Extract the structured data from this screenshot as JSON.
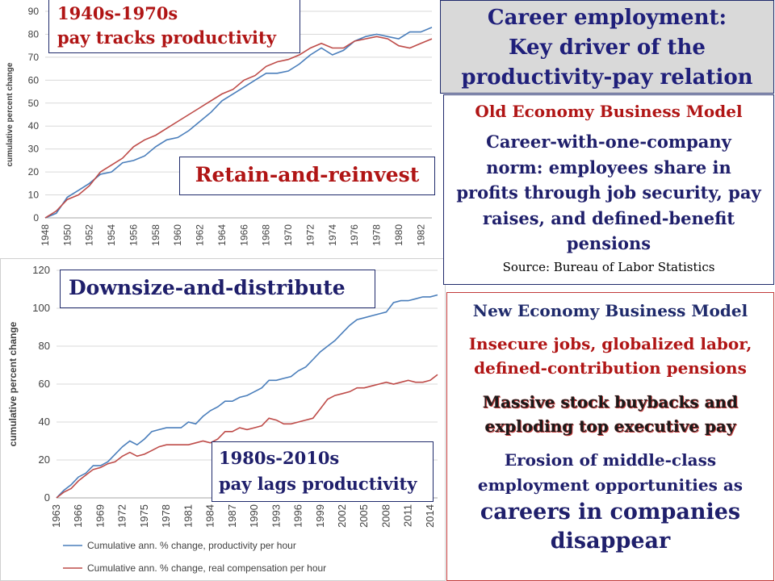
{
  "title": {
    "line1": "Career employment:",
    "line2": "Key driver of the",
    "line3": "productivity-pay relation"
  },
  "old_model": {
    "heading": "Old Economy Business Model",
    "line1": "Career-with-one-company",
    "line2": "norm: employees share in",
    "line3": "profits through job security, pay",
    "line4": "raises, and defined-benefit",
    "line5": "pensions",
    "source": "Source: Bureau of Labor Statistics"
  },
  "new_model": {
    "heading": "New Economy Business Model",
    "insecure1": "Insecure jobs, globalized labor,",
    "insecure2": "defined-contribution pensions",
    "buybacks1": "Massive stock buybacks and",
    "buybacks2": "exploding top executive pay",
    "erosion1": "Erosion of middle-class",
    "erosion2": "employment opportunities as",
    "careers1": "careers in companies",
    "careers2": "disappear"
  },
  "labels": {
    "era1_line1": "1940s-1970s",
    "era1_line2": "pay tracks productivity",
    "retain": "Retain-and-reinvest",
    "downsize": "Downsize-and-distribute",
    "era2_line1": "1980s-2010s",
    "era2_line2": "pay lags productivity"
  },
  "colors": {
    "productivity": "#4a7ebb",
    "compensation": "#be4b48",
    "title_bg": "#d9d9d9",
    "accent_red": "#b01515",
    "navy": "#1f1f6b"
  },
  "chart_data": [
    {
      "type": "line",
      "ylabel": "cumulative percent change",
      "ylim": [
        0,
        90
      ],
      "yticks": [
        0,
        10,
        20,
        30,
        40,
        50,
        60,
        70,
        80,
        90
      ],
      "xlim": [
        1948,
        1983
      ],
      "xticks": [
        "1948",
        "1950",
        "1952",
        "1954",
        "1956",
        "1958",
        "1960",
        "1962",
        "1964",
        "1966",
        "1968",
        "1970",
        "1972",
        "1974",
        "1976",
        "1978",
        "1980",
        "1982"
      ],
      "grid": true,
      "x": [
        1948,
        1949,
        1950,
        1951,
        1952,
        1953,
        1954,
        1955,
        1956,
        1957,
        1958,
        1959,
        1960,
        1961,
        1962,
        1963,
        1964,
        1965,
        1966,
        1967,
        1968,
        1969,
        1970,
        1971,
        1972,
        1973,
        1974,
        1975,
        1976,
        1977,
        1978,
        1979,
        1980,
        1981,
        1982,
        1983
      ],
      "series": [
        {
          "color_key": "productivity",
          "values": [
            0,
            2,
            9,
            12,
            15,
            19,
            20,
            24,
            25,
            27,
            31,
            34,
            35,
            38,
            42,
            46,
            51,
            54,
            57,
            60,
            63,
            63,
            64,
            67,
            71,
            74,
            71,
            73,
            77,
            79,
            80,
            79,
            78,
            81,
            81,
            83
          ]
        },
        {
          "color_key": "compensation",
          "values": [
            0,
            3,
            8,
            10,
            14,
            20,
            23,
            26,
            31,
            34,
            36,
            39,
            42,
            45,
            48,
            51,
            54,
            56,
            60,
            62,
            66,
            68,
            69,
            71,
            74,
            76,
            74,
            74,
            77,
            78,
            79,
            78,
            75,
            74,
            76,
            78
          ]
        }
      ]
    },
    {
      "type": "line",
      "ylabel": "cumulative percent change",
      "ylim": [
        0,
        120
      ],
      "yticks": [
        0,
        20,
        40,
        60,
        80,
        100,
        120
      ],
      "xlim": [
        1963,
        2015
      ],
      "xticks": [
        "1963",
        "1966",
        "1969",
        "1972",
        "1975",
        "1978",
        "1981",
        "1984",
        "1987",
        "1990",
        "1993",
        "1996",
        "1999",
        "2002",
        "2005",
        "2008",
        "2011",
        "2014"
      ],
      "grid": true,
      "x": [
        1963,
        1964,
        1965,
        1966,
        1967,
        1968,
        1969,
        1970,
        1971,
        1972,
        1973,
        1974,
        1975,
        1976,
        1977,
        1978,
        1979,
        1980,
        1981,
        1982,
        1983,
        1984,
        1985,
        1986,
        1987,
        1988,
        1989,
        1990,
        1991,
        1992,
        1993,
        1994,
        1995,
        1996,
        1997,
        1998,
        1999,
        2000,
        2001,
        2002,
        2003,
        2004,
        2005,
        2006,
        2007,
        2008,
        2009,
        2010,
        2011,
        2012,
        2013,
        2014,
        2015
      ],
      "series": [
        {
          "name": "Cumulative ann. % change, productivity per hour",
          "color_key": "productivity",
          "values": [
            0,
            4,
            7,
            11,
            13,
            17,
            17,
            19,
            23,
            27,
            30,
            28,
            31,
            35,
            36,
            37,
            37,
            37,
            40,
            39,
            43,
            46,
            48,
            51,
            51,
            53,
            54,
            56,
            58,
            62,
            62,
            63,
            64,
            67,
            69,
            73,
            77,
            80,
            83,
            87,
            91,
            94,
            95,
            96,
            97,
            98,
            103,
            104,
            104,
            105,
            106,
            106,
            107
          ]
        },
        {
          "name": "Cumulative ann. % change, real compensation per hour",
          "color_key": "compensation",
          "values": [
            0,
            3,
            5,
            9,
            12,
            15,
            16,
            18,
            19,
            22,
            24,
            22,
            23,
            25,
            27,
            28,
            28,
            28,
            28,
            29,
            30,
            29,
            31,
            35,
            35,
            37,
            36,
            37,
            38,
            42,
            41,
            39,
            39,
            40,
            41,
            42,
            47,
            52,
            54,
            55,
            56,
            58,
            58,
            59,
            60,
            61,
            60,
            61,
            62,
            61,
            61,
            62,
            65
          ]
        }
      ]
    }
  ]
}
